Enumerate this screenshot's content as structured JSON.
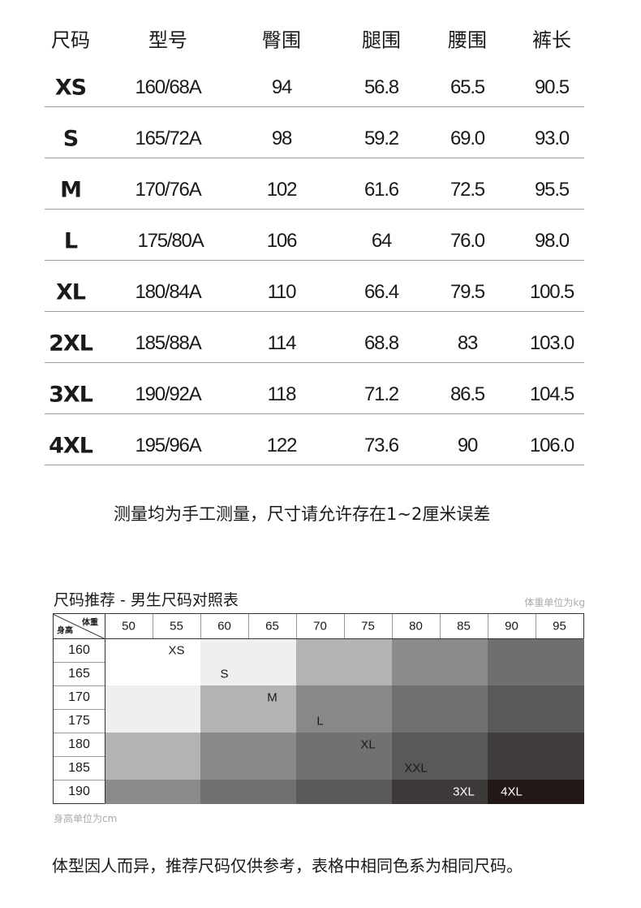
{
  "size_table": {
    "headers": [
      "尺码",
      "型号",
      "臀围",
      "腿围",
      "腰围",
      "裤长"
    ],
    "rows": [
      [
        "XS",
        "160/68A",
        "94",
        "56.8",
        "65.5",
        "90.5"
      ],
      [
        "S",
        "165/72A",
        "98",
        "59.2",
        "69.0",
        "93.0"
      ],
      [
        "M",
        "170/76A",
        "102",
        "61.6",
        "72.5",
        "95.5"
      ],
      [
        "L",
        "175/80A",
        "106",
        "64",
        "76.0",
        "98.0"
      ],
      [
        "XL",
        "180/84A",
        "110",
        "66.4",
        "79.5",
        "100.5"
      ],
      [
        "2XL",
        "185/88A",
        "114",
        "68.8",
        "83",
        "103.0"
      ],
      [
        "3XL",
        "190/92A",
        "118",
        "71.2",
        "86.5",
        "104.5"
      ],
      [
        "4XL",
        "195/96A",
        "122",
        "73.6",
        "90",
        "106.0"
      ]
    ]
  },
  "measure_note": "测量均为手工测量，尺寸请允许存在1~2厘米误差",
  "recommend": {
    "title": "尺码推荐 - 男生尺码对照表",
    "weight_unit": "体重单位为kg",
    "height_unit": "身高单位为cm",
    "corner_weight": "体重",
    "corner_height": "身高",
    "weights": [
      "50",
      "55",
      "60",
      "65",
      "70",
      "75",
      "80",
      "85",
      "90",
      "95"
    ],
    "heights": [
      "160",
      "165",
      "170",
      "175",
      "180",
      "185",
      "190"
    ],
    "block_colors": [
      [
        "#ffffff",
        "#efefef",
        "#b3b3b3",
        "#8b8b8b",
        "#6f6f6f"
      ],
      [
        "#efefef",
        "#b3b3b3",
        "#888888",
        "#707070",
        "#595959"
      ],
      [
        "#b3b3b3",
        "#898989",
        "#717171",
        "#595959",
        "#3f3c3b"
      ],
      [
        "#8b8b8b",
        "#717171",
        "#5a5a5a",
        "#3d3a39",
        "#221815"
      ]
    ],
    "size_labels": [
      {
        "text": "XS",
        "height": "160",
        "weight": "55"
      },
      {
        "text": "S",
        "height": "165",
        "weight": "60"
      },
      {
        "text": "M",
        "height": "170",
        "weight": "65"
      },
      {
        "text": "L",
        "height": "175",
        "weight": "70"
      },
      {
        "text": "XL",
        "height": "180",
        "weight": "75"
      },
      {
        "text": "XXL",
        "height": "185",
        "weight": "80"
      },
      {
        "text": "3XL",
        "height": "190",
        "weight": "85"
      },
      {
        "text": "4XL",
        "height": "190",
        "weight": "90"
      }
    ]
  },
  "footer_note": "体型因人而异，推荐尺码仅供参考，表格中相同色系为相同尺码。"
}
